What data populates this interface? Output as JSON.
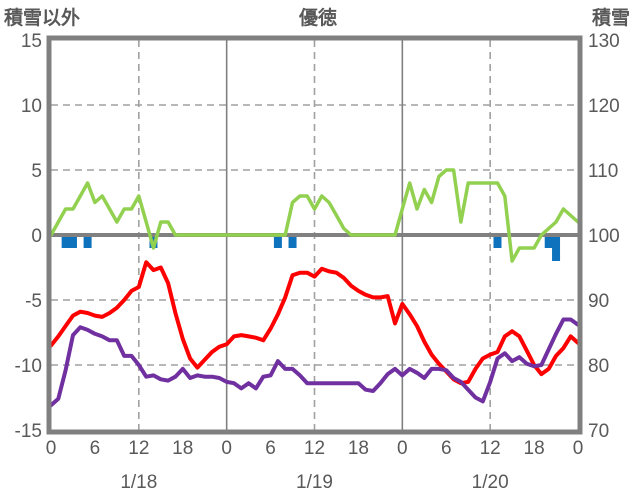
{
  "header": {
    "left_axis_title": "積雪以外",
    "chart_title": "優徳",
    "right_axis_title": "積雪"
  },
  "chart_data": {
    "type": "line",
    "title": "優徳",
    "station": "優徳",
    "left_axis": {
      "label": "積雪以外",
      "ticks": [
        15,
        10,
        5,
        0,
        -5,
        -10,
        -15
      ],
      "range": [
        -15,
        15
      ]
    },
    "right_axis": {
      "label": "積雪",
      "ticks": [
        130,
        120,
        110,
        100,
        90,
        80,
        70
      ],
      "range": [
        70,
        130
      ]
    },
    "x_axis": {
      "hours_total": 72,
      "hour_tick_labels": [
        "0",
        "6",
        "12",
        "18",
        "0",
        "6",
        "12",
        "18",
        "0",
        "6",
        "12",
        "18",
        "0"
      ],
      "hour_tick_positions": [
        0,
        6,
        12,
        18,
        24,
        30,
        36,
        42,
        48,
        54,
        60,
        66,
        72
      ],
      "date_labels": [
        "1/18",
        "1/19",
        "1/20"
      ],
      "date_positions": [
        12,
        36,
        60
      ],
      "dashed_gridlines_at": [
        12,
        36,
        60
      ],
      "solid_gridlines_at": [
        24,
        48
      ]
    },
    "grid": {
      "horizontal_dashed_at": [
        10,
        5,
        -5,
        -10
      ]
    },
    "series": [
      {
        "name": "green",
        "axis": "right",
        "color": "#92D050",
        "width": 3.5,
        "values": [
          100,
          102,
          104,
          104,
          106,
          108,
          105,
          106,
          104,
          102,
          104,
          104,
          106,
          102,
          98,
          102,
          102,
          100,
          100,
          100,
          100,
          100,
          100,
          100,
          100,
          100,
          100,
          100,
          100,
          100,
          100,
          100,
          100,
          105,
          106,
          106,
          104,
          106,
          105,
          103,
          101,
          100,
          100,
          100,
          100,
          100,
          100,
          100,
          104,
          108,
          104,
          107,
          105,
          109,
          110,
          110,
          102,
          108,
          108,
          108,
          108,
          108,
          106,
          96,
          98,
          98,
          98,
          100,
          101,
          102,
          104,
          103,
          102
        ]
      },
      {
        "name": "red",
        "axis": "left",
        "color": "#FF0000",
        "width": 4,
        "values": [
          -8.5,
          -7.8,
          -7.0,
          -6.2,
          -5.9,
          -6.0,
          -6.2,
          -6.3,
          -6.0,
          -5.6,
          -5.0,
          -4.3,
          -4.0,
          -2.1,
          -2.7,
          -2.5,
          -3.7,
          -6.0,
          -8.0,
          -9.5,
          -10.2,
          -9.6,
          -9.0,
          -8.6,
          -8.4,
          -7.8,
          -7.7,
          -7.8,
          -7.9,
          -8.1,
          -7.2,
          -6.1,
          -4.8,
          -3.1,
          -2.9,
          -2.9,
          -3.2,
          -2.6,
          -2.8,
          -2.9,
          -3.3,
          -3.9,
          -4.3,
          -4.6,
          -4.8,
          -4.8,
          -4.7,
          -6.8,
          -5.3,
          -6.1,
          -7.0,
          -8.2,
          -9.2,
          -9.9,
          -10.5,
          -11.1,
          -11.4,
          -11.3,
          -10.3,
          -9.5,
          -9.2,
          -9.0,
          -7.8,
          -7.4,
          -7.8,
          -8.9,
          -10.0,
          -10.7,
          -10.3,
          -9.3,
          -8.7,
          -7.8,
          -8.3
        ]
      },
      {
        "name": "purple",
        "axis": "left",
        "color": "#7030A0",
        "width": 4,
        "values": [
          -13.1,
          -12.6,
          -10.4,
          -7.7,
          -7.1,
          -7.3,
          -7.6,
          -7.8,
          -8.1,
          -8.1,
          -9.3,
          -9.3,
          -10.0,
          -10.9,
          -10.8,
          -11.1,
          -11.2,
          -10.9,
          -10.3,
          -11.0,
          -10.8,
          -10.9,
          -10.9,
          -11.0,
          -11.3,
          -11.4,
          -11.8,
          -11.4,
          -11.8,
          -10.9,
          -10.8,
          -9.7,
          -10.3,
          -10.3,
          -10.8,
          -11.4,
          -11.4,
          -11.4,
          -11.4,
          -11.4,
          -11.4,
          -11.4,
          -11.4,
          -11.9,
          -12.0,
          -11.4,
          -10.7,
          -10.3,
          -10.8,
          -10.3,
          -10.6,
          -11.0,
          -10.3,
          -10.3,
          -10.4,
          -11.0,
          -11.3,
          -11.9,
          -12.5,
          -12.8,
          -11.3,
          -9.5,
          -9.1,
          -9.7,
          -9.4,
          -9.9,
          -10.1,
          -10.0,
          -8.8,
          -7.6,
          -6.5,
          -6.5,
          -6.9
        ]
      }
    ],
    "bars": {
      "name": "blue-bars",
      "axis": "left",
      "color": "#0F72BC",
      "values_by_hour": {
        "2": -1,
        "3": -1,
        "5": -1,
        "14": -1,
        "31": -1,
        "33": -1,
        "61": -1,
        "68": -1,
        "69": -2
      }
    },
    "colors": {
      "border_gray": "#808080",
      "grid_gray": "#A0A0A0",
      "text_gray": "#595959",
      "background": "#FFFFFF"
    }
  }
}
